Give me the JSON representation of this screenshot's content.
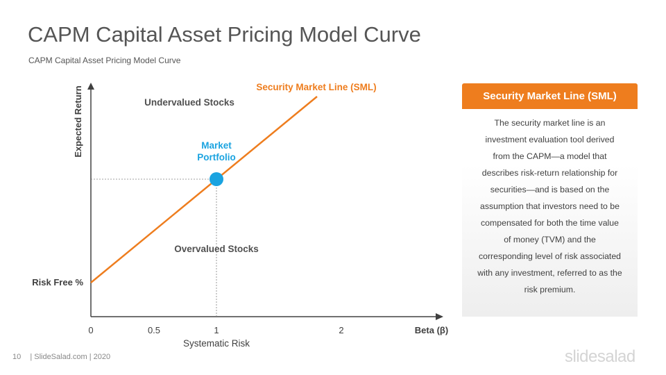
{
  "slide": {
    "title": "CAPM Capital Asset Pricing Model Curve",
    "subtitle": "CAPM  Capital  Asset  Pricing  Model  Curve"
  },
  "diagram": {
    "y_axis_label": "Expected Return",
    "x_axis_label": "Systematic Risk",
    "x_axis_end_label": "Beta (β)",
    "x_ticks": [
      "0",
      "0.5",
      "1",
      "2"
    ],
    "line_label": "Security Market Line (SML)",
    "point_label_line1": "Market",
    "point_label_line2": "Portfolio",
    "region_above_label": "Undervalued Stocks",
    "region_below_label": "Overvalued Stocks",
    "intercept_label": "Risk Free %",
    "colors": {
      "line": "#ee7d1e",
      "point": "#1aa3e0",
      "axis": "#404040"
    }
  },
  "panel": {
    "header": "Security Market Line (SML)",
    "lines": [
      "The security market line is an",
      "investment evaluation tool derived",
      "from the CAPM—a model that",
      "describes risk-return relationship for",
      "securities—and is based on the",
      "assumption that investors need to be",
      "compensated for both the time value",
      "of money (TVM) and the",
      "corresponding  level of risk associated",
      "with any investment, referred to as the",
      "risk premium."
    ]
  },
  "footer": {
    "page_number": "10",
    "text": "| SlideSalad.com | 2020",
    "brand": "slidesalad"
  }
}
